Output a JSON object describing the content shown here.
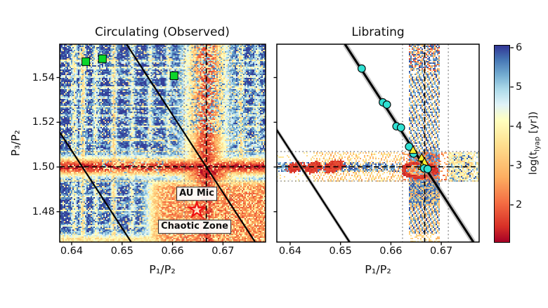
{
  "figure": {
    "titles": {
      "left": "Circulating (Observed)",
      "right": "Librating"
    },
    "axis_labels": {
      "x": "P₁/P₂",
      "y": "P₃/P₂"
    },
    "annotations": {
      "au_mic": "AU Mic",
      "chaotic_zone": "Chaotic Zone"
    },
    "colorbar_label": {
      "pre": "log(t",
      "sub": "lyap",
      "post": " [yr])"
    },
    "marker_colors": {
      "green_square": "#0bd62a",
      "cyan_circle": "#2fe0d2",
      "yellow_triangle": "#f7ee2e",
      "star": "#ee1111"
    }
  },
  "chart_data": {
    "type": "heatmap",
    "panels": [
      {
        "id": "circulating",
        "title": "Circulating (Observed)"
      },
      {
        "id": "librating",
        "title": "Librating"
      }
    ],
    "x_axis": {
      "label": "P₁/P₂",
      "range": [
        0.6376,
        0.6785
      ],
      "ticks": [
        0.64,
        0.65,
        0.66,
        0.67
      ],
      "tick_labels": [
        "0.64",
        "0.65",
        "0.66",
        "0.67"
      ]
    },
    "y_axis": {
      "label": "P₃/P₂",
      "range": [
        1.4664,
        1.5549
      ],
      "ticks": [
        1.48,
        1.5,
        1.52,
        1.54
      ],
      "tick_labels": [
        "1.48",
        "1.50",
        "1.52",
        "1.54"
      ]
    },
    "colorbar": {
      "label": "log(t_lyap [yr])",
      "range": [
        1.05,
        6.05
      ],
      "ticks": [
        2,
        3,
        4,
        5,
        6
      ],
      "tick_labels": [
        "2",
        "3",
        "4",
        "5",
        "6"
      ]
    },
    "dashed_crosshair": {
      "x": 0.6667,
      "y": 1.5001
    },
    "dotted_guides": {
      "x": [
        0.6623,
        0.6714
      ],
      "y": [
        1.5069,
        1.4937
      ]
    },
    "lines": {
      "main": [
        [
          0.65088,
          1.5549
        ],
        [
          0.67638,
          1.4664
        ]
      ],
      "secondary": [
        [
          0.62629,
          1.5549
        ],
        [
          0.6518,
          1.4664
        ]
      ]
    },
    "markers": {
      "green_squares": [
        [
          0.6428,
          1.5471
        ],
        [
          0.6461,
          1.5484
        ],
        [
          0.6603,
          1.5408
        ]
      ],
      "au_mic_star": [
        0.6648,
        1.4808
      ],
      "cyan_circles": [
        [
          0.6542,
          1.544
        ],
        [
          0.6584,
          1.5289
        ],
        [
          0.6592,
          1.5279
        ],
        [
          0.6611,
          1.5182
        ],
        [
          0.662,
          1.5176
        ],
        [
          0.6636,
          1.5091
        ],
        [
          0.6645,
          1.506
        ],
        [
          0.6666,
          1.4994
        ],
        [
          0.6673,
          1.4991
        ]
      ],
      "yellow_triangles": [
        [
          0.6644,
          1.5075
        ],
        [
          0.6661,
          1.5041
        ],
        [
          0.66665,
          1.5022
        ],
        [
          0.6662,
          1.5003
        ]
      ]
    },
    "colormap": {
      "name": "RdYlBu",
      "stops": [
        [
          0,
          "#a50026"
        ],
        [
          0.08,
          "#d73027"
        ],
        [
          0.2,
          "#f46d43"
        ],
        [
          0.33,
          "#fdae61"
        ],
        [
          0.5,
          "#fee090"
        ],
        [
          0.62,
          "#ffffbf"
        ],
        [
          0.7,
          "#e0f3f8"
        ],
        [
          0.78,
          "#abd9e9"
        ],
        [
          0.85,
          "#74add1"
        ],
        [
          0.93,
          "#4575b4"
        ],
        [
          1,
          "#313695"
        ]
      ]
    },
    "heatmap_features": {
      "circulating": {
        "base_value": 5.7,
        "h_band": {
          "y": 1.5001,
          "sigma": 0.003,
          "w": 0.95
        },
        "v_band": {
          "x": 0.6667,
          "sigma": 0.0028,
          "w": 0.88
        },
        "center_blob": {
          "x": 0.667,
          "y": 1.4975,
          "sigma": 0.004,
          "w": 1.0
        },
        "left_blob": {
          "x": 0.6432,
          "y": 1.5001,
          "sigma": 0.0015,
          "w": 0.97
        },
        "chaotic_zone": {
          "x_start": 0.6555,
          "y_top": 1.4938,
          "w": 0.76
        },
        "bottom_strip": {
          "y": 1.4672,
          "sigma": 0.0022,
          "w": 0.5
        },
        "web_x": [
          [
            0.6405,
            0.45
          ],
          [
            0.6422,
            0.55
          ],
          [
            0.6448,
            0.4
          ],
          [
            0.6484,
            0.55
          ],
          [
            0.652,
            0.4
          ],
          [
            0.6556,
            0.35
          ],
          [
            0.6592,
            0.35
          ],
          [
            0.6625,
            0.4
          ],
          [
            0.67,
            0.4
          ],
          [
            0.6736,
            0.55
          ],
          [
            0.6768,
            0.35
          ]
        ],
        "web_y": [
          [
            1.5475,
            0.5
          ],
          [
            1.5443,
            0.45
          ],
          [
            1.5405,
            0.4
          ],
          [
            1.5355,
            0.45
          ],
          [
            1.531,
            0.35
          ],
          [
            1.527,
            0.4
          ],
          [
            1.523,
            0.35
          ],
          [
            1.518,
            0.45
          ],
          [
            1.512,
            0.5
          ],
          [
            1.5069,
            0.45
          ],
          [
            1.4937,
            0.45
          ],
          [
            1.487,
            0.4
          ],
          [
            1.4805,
            0.4
          ],
          [
            1.4738,
            0.35
          ]
        ]
      },
      "librating": {
        "h_band": {
          "y": 1.5001,
          "half_width": 0.0048
        },
        "h_band_full": 0.0066,
        "v_band": {
          "x": 0.66665,
          "half_width": 0.003
        },
        "v_band_full": 0.00455,
        "ring": {
          "x": 0.66555,
          "y": 1.4986,
          "r_outer": 0.004,
          "r_inner": 0.0025
        },
        "red_blobs": [
          [
            0.641,
            1.5,
            8
          ],
          [
            0.6445,
            1.4997,
            8.5
          ],
          [
            0.6487,
            1.5004,
            9
          ]
        ],
        "blue_clusters_x": [
          0.6378,
          0.6398,
          0.6455,
          0.647,
          0.6492,
          0.6505,
          0.652,
          0.6532,
          0.6549,
          0.6558,
          0.6572,
          0.659,
          0.6604
        ]
      }
    }
  }
}
